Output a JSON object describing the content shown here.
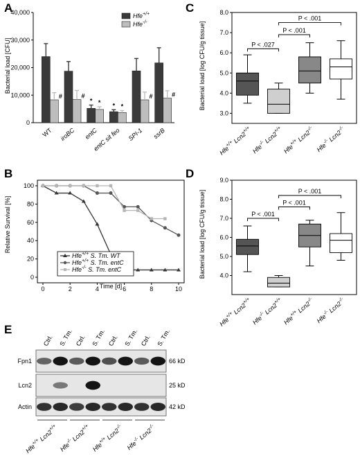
{
  "panels": {
    "A": {
      "label": "A",
      "chart_data": {
        "type": "bar",
        "ylabel": "Bacterial load [CFU]",
        "ylim": [
          0,
          40000
        ],
        "yticks": [
          "0",
          "10,000",
          "20,000",
          "30,000",
          "40,000"
        ],
        "categories": [
          "WT",
          "iroBC",
          "entC",
          "entC sit feo",
          "SPI-1",
          "ssrB"
        ],
        "series": [
          {
            "name_main": "Hfe",
            "name_sup": "+/+",
            "color": "#3a3a3a",
            "values": [
              24000,
              18700,
              5200,
              4000,
              18800,
              21700
            ],
            "errors": [
              4700,
              3500,
              1200,
              700,
              4500,
              5500
            ]
          },
          {
            "name_main": "Hfe",
            "name_sup": "-/-",
            "color": "#bdbdbd",
            "values": [
              8300,
              8400,
              4800,
              3700,
              8300,
              8900
            ],
            "errors": [
              2600,
              3300,
              1000,
              700,
              2800,
              2700
            ]
          }
        ],
        "markers": [
          {
            "category": 0,
            "series": 1,
            "text": "#"
          },
          {
            "category": 1,
            "series": 1,
            "text": "#"
          },
          {
            "category": 2,
            "series": 0,
            "text": "*"
          },
          {
            "category": 2,
            "series": 1,
            "text": "*"
          },
          {
            "category": 3,
            "series": 0,
            "text": "*"
          },
          {
            "category": 3,
            "series": 1,
            "text": "*"
          },
          {
            "category": 4,
            "series": 1,
            "text": "#"
          },
          {
            "category": 5,
            "series": 1,
            "text": "#"
          }
        ]
      }
    },
    "B": {
      "label": "B",
      "chart_data": {
        "type": "line",
        "xlabel": "Time [d]",
        "ylabel": "Relative Survival [%]",
        "xlim": [
          0,
          10
        ],
        "ylim": [
          0,
          100
        ],
        "xticks": [
          "0",
          "2",
          "4",
          "6",
          "8",
          "10"
        ],
        "yticks": [
          "0",
          "20",
          "40",
          "60",
          "80",
          "100"
        ],
        "series": [
          {
            "label_main": "Hfe",
            "label_sup": "+/+",
            "label_rest": " S. Tm. WT",
            "color": "#333333",
            "marker": "triangle",
            "x": [
              0,
              1,
              2,
              3,
              4,
              5,
              6,
              7,
              8,
              9,
              10
            ],
            "y": [
              100,
              92,
              92,
              83,
              58,
              25,
              8,
              8,
              8,
              8,
              8
            ]
          },
          {
            "label_main": "Hfe",
            "label_sup": "+/+",
            "label_rest": " S. Tm. entC",
            "color": "#555555",
            "marker": "circle",
            "x": [
              0,
              1,
              2,
              3,
              4,
              5,
              6,
              7,
              8,
              9,
              10
            ],
            "y": [
              100,
              100,
              100,
              100,
              92,
              92,
              77,
              77,
              62,
              54,
              46
            ]
          },
          {
            "label_main": "Hfe",
            "label_sup": "-/-",
            "label_rest": " S. Tm. entC",
            "color": "#b5b5b5",
            "marker": "square",
            "x": [
              0,
              1,
              2,
              3,
              4,
              5,
              6,
              7,
              8,
              9
            ],
            "y": [
              100,
              100,
              100,
              100,
              100,
              100,
              73,
              73,
              64,
              64
            ]
          }
        ]
      }
    },
    "C": {
      "label": "C",
      "chart_data": {
        "type": "box",
        "ylabel": "Bacterial load [log CFU/g tissue]",
        "ylim": [
          2.5,
          8.0
        ],
        "yticks": [
          "3.0",
          "4.0",
          "5.0",
          "6.0",
          "7.0",
          "8.0"
        ],
        "groups": [
          {
            "a_main": "Hfe",
            "a_sup": "+/+",
            "b_main": " Lcn2",
            "b_sup": "+/+",
            "min": 3.5,
            "q1": 3.9,
            "median": 4.6,
            "q3": 5.0,
            "max": 5.9,
            "color": "#555555"
          },
          {
            "a_main": "Hfe",
            "a_sup": "-/-",
            "b_main": " Lcn2",
            "b_sup": "+/+",
            "min": 3.0,
            "q1": 3.0,
            "median": 3.45,
            "q3": 4.2,
            "max": 4.5,
            "color": "#cfcfcf"
          },
          {
            "a_main": "Hfe",
            "a_sup": "+/+",
            "b_main": " Lcn2",
            "b_sup": "-/-",
            "min": 4.0,
            "q1": 4.5,
            "median": 5.1,
            "q3": 5.8,
            "max": 6.5,
            "color": "#888888"
          },
          {
            "a_main": "Hfe",
            "a_sup": "-/-",
            "b_main": " Lcn2",
            "b_sup": "-/-",
            "min": 3.7,
            "q1": 4.7,
            "median": 5.3,
            "q3": 5.7,
            "max": 6.6,
            "color": "#ffffff"
          }
        ],
        "brackets": [
          {
            "from": 0,
            "to": 1,
            "text": "P < .027",
            "level": 6.2
          },
          {
            "from": 1,
            "to": 2,
            "text": "P < .001",
            "level": 6.9
          },
          {
            "from": 1,
            "to": 3,
            "text": "P < .001",
            "level": 7.5
          }
        ]
      }
    },
    "D": {
      "label": "D",
      "chart_data": {
        "type": "box",
        "ylabel": "Bacterial load [log CFU/g tissue]",
        "ylim": [
          3.0,
          9.0
        ],
        "yticks": [
          "4.0",
          "5.0",
          "6.0",
          "7.0",
          "8.0",
          "9.0"
        ],
        "groups": [
          {
            "a_main": "Hfe",
            "a_sup": "+/+",
            "b_main": " Lcn2",
            "b_sup": "+/+",
            "min": 4.2,
            "q1": 5.1,
            "median": 5.55,
            "q3": 5.9,
            "max": 6.6,
            "color": "#555555"
          },
          {
            "a_main": "Hfe",
            "a_sup": "-/-",
            "b_main": " Lcn2",
            "b_sup": "+/+",
            "min": 3.4,
            "q1": 3.4,
            "median": 3.6,
            "q3": 3.9,
            "max": 4.0,
            "color": "#cfcfcf"
          },
          {
            "a_main": "Hfe",
            "a_sup": "+/+",
            "b_main": " Lcn2",
            "b_sup": "-/-",
            "min": 4.5,
            "q1": 5.5,
            "median": 6.1,
            "q3": 6.7,
            "max": 6.9,
            "color": "#888888"
          },
          {
            "a_main": "Hfe",
            "a_sup": "-/-",
            "b_main": " Lcn2",
            "b_sup": "-/-",
            "min": 4.8,
            "q1": 5.2,
            "median": 5.85,
            "q3": 6.2,
            "max": 7.3,
            "color": "#ffffff"
          }
        ],
        "brackets": [
          {
            "from": 0,
            "to": 1,
            "text": "P < .001",
            "level": 7.0
          },
          {
            "from": 1,
            "to": 2,
            "text": "P < .001",
            "level": 7.6
          },
          {
            "from": 1,
            "to": 3,
            "text": "P < .001",
            "level": 8.2
          }
        ]
      }
    },
    "E": {
      "label": "E",
      "columns": [
        "Ctrl.",
        "S. Tm.",
        "Ctrl.",
        "S. Tm.",
        "Ctrl.",
        "S. Tm.",
        "Ctrl.",
        "S. Tm."
      ],
      "rows": [
        {
          "name": "Fpn1",
          "size": "66 kD",
          "intensity": [
            0.55,
            0.95,
            0.6,
            0.95,
            0.65,
            0.95,
            0.6,
            0.95
          ]
        },
        {
          "name": "Lcn2",
          "size": "25 kD",
          "intensity": [
            0.0,
            0.45,
            0.0,
            0.95,
            0.0,
            0.0,
            0.0,
            0.0
          ]
        },
        {
          "name": "Actin",
          "size": "42 kD",
          "intensity": [
            0.8,
            0.85,
            0.75,
            0.85,
            0.8,
            0.85,
            0.8,
            0.85
          ]
        }
      ],
      "groups": [
        {
          "a_main": "Hfe",
          "a_sup": "+/+",
          "b_main": " Lcn2",
          "b_sup": "+/+"
        },
        {
          "a_main": "Hfe",
          "a_sup": "-/-",
          "b_main": " Lcn2",
          "b_sup": "+/+"
        },
        {
          "a_main": "Hfe",
          "a_sup": "+/+",
          "b_main": " Lcn2",
          "b_sup": "-/-"
        },
        {
          "a_main": "Hfe",
          "a_sup": "-/-",
          "b_main": " Lcn2",
          "b_sup": "-/-"
        }
      ]
    }
  }
}
